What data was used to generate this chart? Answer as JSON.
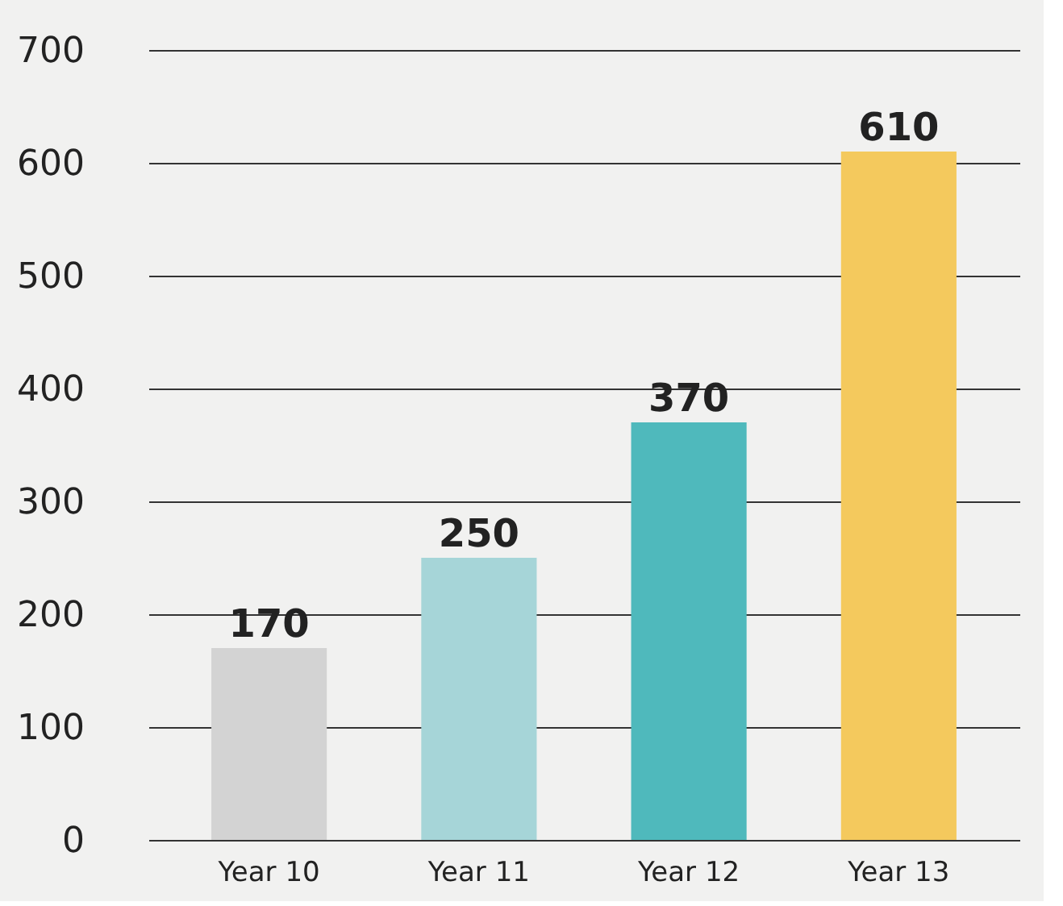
{
  "chart_data": {
    "type": "bar",
    "categories": [
      "Year 10",
      "Year 11",
      "Year 12",
      "Year 13"
    ],
    "values": [
      170,
      250,
      370,
      610
    ],
    "colors": [
      "#d3d3d3",
      "#a6d5d8",
      "#4fb9bc",
      "#f4c95d"
    ],
    "ylim": [
      0,
      700
    ],
    "yticks": [
      0,
      100,
      200,
      300,
      400,
      500,
      600,
      700
    ],
    "grid": "y",
    "data_labels": true
  }
}
